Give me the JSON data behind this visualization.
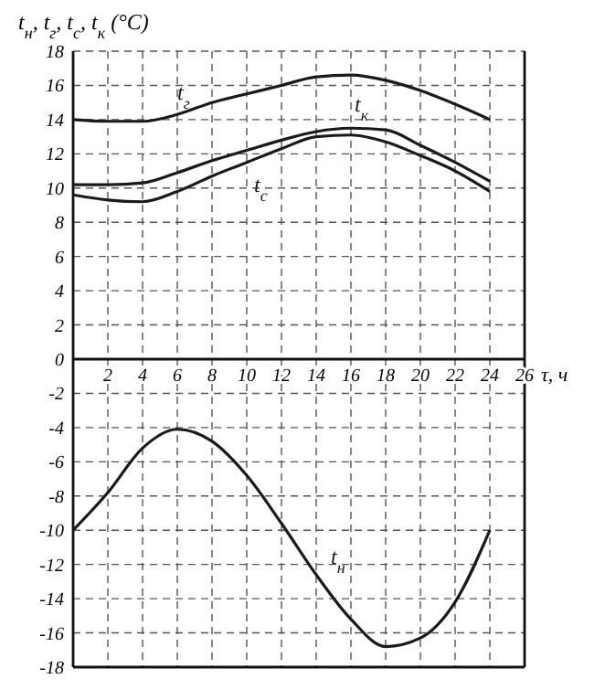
{
  "chart_data": {
    "type": "line",
    "ylabel": "t$_{н}$, t$_{г}$, t$_{с}$, t$_{к}$ (°C)",
    "xlabel": "τ, ч",
    "x": [
      0,
      2,
      4,
      6,
      8,
      10,
      12,
      14,
      16,
      18,
      20,
      22,
      24
    ],
    "series": [
      {
        "name": "t$_{г}$",
        "color": "#1a1a1a",
        "values": [
          14,
          13.9,
          13.9,
          14.3,
          15,
          15.5,
          16,
          16.5,
          16.6,
          16.3,
          15.7,
          14.9,
          14
        ]
      },
      {
        "name": "t$_{к}$",
        "color": "#1a1a1a",
        "values": [
          10.2,
          10.2,
          10.3,
          10.9,
          11.6,
          12.2,
          12.8,
          13.3,
          13.5,
          13.4,
          12.5,
          11.5,
          10.4
        ]
      },
      {
        "name": "t$_{с}$",
        "color": "#1a1a1a",
        "values": [
          9.6,
          9.3,
          9.2,
          9.8,
          10.7,
          11.5,
          12.3,
          13,
          13.1,
          12.7,
          11.9,
          11,
          9.8
        ]
      },
      {
        "name": "t$_{н}$",
        "color": "#1a1a1a",
        "values": [
          -10,
          -7.8,
          -5.2,
          -4.1,
          -4.8,
          -6.8,
          -9.6,
          -12.6,
          -15.2,
          -16.8,
          -16.3,
          -14.2,
          -10
        ]
      }
    ],
    "xlim": [
      0,
      26
    ],
    "xticks": [
      2,
      4,
      6,
      8,
      10,
      12,
      14,
      16,
      18,
      20,
      22,
      24,
      26
    ],
    "ylim": [
      -18,
      18
    ],
    "yticks": [
      -18,
      -16,
      -14,
      -12,
      -10,
      -8,
      -6,
      -4,
      -2,
      0,
      2,
      4,
      6,
      8,
      10,
      12,
      14,
      16,
      18
    ],
    "grid": true,
    "marker": "none",
    "line_style": "solid"
  }
}
